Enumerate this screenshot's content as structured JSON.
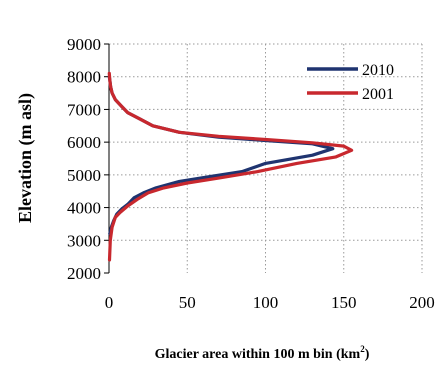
{
  "chart_data": {
    "type": "line",
    "title": "",
    "xlabel": "Glacier area within 100 m bin (km",
    "xlabel_superscript": "2",
    "xlabel_suffix": ")",
    "ylabel": "Elevation (m asl)",
    "xlim": [
      0,
      200
    ],
    "ylim": [
      2000,
      9000
    ],
    "x_ticks": [
      "0",
      "50",
      "100",
      "150",
      "200"
    ],
    "y_ticks": [
      "2000",
      "3000",
      "4000",
      "5000",
      "6000",
      "7000",
      "8000",
      "9000"
    ],
    "grid": true,
    "legend_position": "top-right",
    "series": [
      {
        "name": "2010",
        "color": "#1f3470",
        "points": [
          [
            0.5,
            3200
          ],
          [
            1.5,
            3400
          ],
          [
            3,
            3600
          ],
          [
            5,
            3800
          ],
          [
            8,
            3950
          ],
          [
            12,
            4100
          ],
          [
            16,
            4300
          ],
          [
            22,
            4450
          ],
          [
            30,
            4600
          ],
          [
            45,
            4800
          ],
          [
            65,
            4950
          ],
          [
            85,
            5100
          ],
          [
            100,
            5350
          ],
          [
            130,
            5600
          ],
          [
            143,
            5800
          ],
          [
            130,
            5950
          ],
          [
            100,
            6050
          ],
          [
            70,
            6150
          ],
          [
            45,
            6300
          ],
          [
            28,
            6500
          ],
          [
            20,
            6700
          ],
          [
            12,
            6900
          ],
          [
            8,
            7100
          ],
          [
            4,
            7300
          ],
          [
            2,
            7500
          ],
          [
            1,
            7700
          ],
          [
            0.5,
            7900
          ],
          [
            0.2,
            8000
          ]
        ]
      },
      {
        "name": "2001",
        "color": "#c8282e",
        "points": [
          [
            0.3,
            2400
          ],
          [
            0.8,
            3000
          ],
          [
            2,
            3400
          ],
          [
            4,
            3700
          ],
          [
            7,
            3850
          ],
          [
            12,
            4050
          ],
          [
            18,
            4250
          ],
          [
            25,
            4450
          ],
          [
            35,
            4600
          ],
          [
            50,
            4750
          ],
          [
            70,
            4900
          ],
          [
            95,
            5100
          ],
          [
            120,
            5350
          ],
          [
            145,
            5550
          ],
          [
            155,
            5750
          ],
          [
            150,
            5880
          ],
          [
            130,
            5980
          ],
          [
            100,
            6080
          ],
          [
            70,
            6180
          ],
          [
            45,
            6300
          ],
          [
            28,
            6500
          ],
          [
            20,
            6700
          ],
          [
            12,
            6900
          ],
          [
            8,
            7100
          ],
          [
            4,
            7300
          ],
          [
            2,
            7500
          ],
          [
            1,
            7700
          ],
          [
            0.5,
            7900
          ],
          [
            0.2,
            8100
          ]
        ]
      }
    ]
  }
}
